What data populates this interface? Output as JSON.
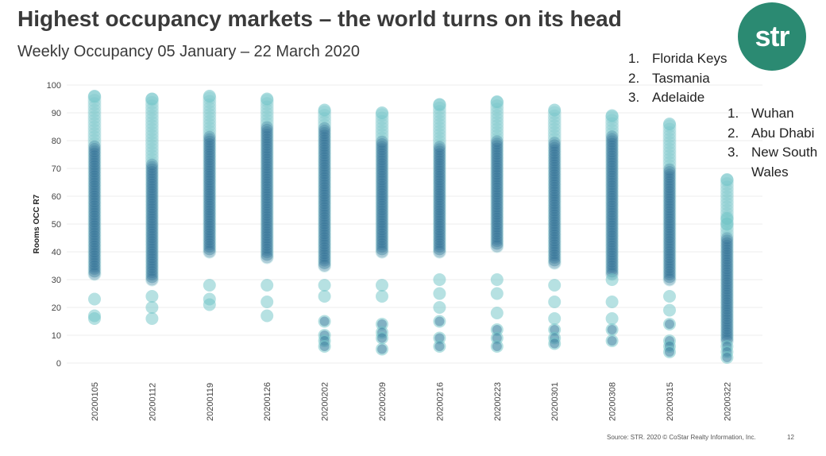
{
  "header": {
    "title": "Highest occupancy markets – the world turns on its head",
    "subtitle": "Weekly Occupancy 05 January – 22 March 2020"
  },
  "logo": {
    "text": "str",
    "color": "#2b8a72"
  },
  "top_list_highest": [
    {
      "num": "1.",
      "label": "Florida Keys"
    },
    {
      "num": "2.",
      "label": "Tasmania"
    },
    {
      "num": "3.",
      "label": "Adelaide"
    }
  ],
  "top_list_latest": [
    {
      "num": "1.",
      "label": "Wuhan"
    },
    {
      "num": "2.",
      "label": "Abu Dhabi"
    },
    {
      "num": "3.",
      "label": "New South Wales"
    }
  ],
  "footer": {
    "source": "Source: STR. 2020 © CoStar Realty Information, Inc.",
    "page_number": "12"
  },
  "colors": {
    "dark_point": "#1f5a8a",
    "light_point": "#6ec3c6"
  },
  "chart_data": {
    "type": "scatter",
    "title": "",
    "xlabel": "",
    "ylabel": "Rooms OCC R7",
    "ylim": [
      0,
      100
    ],
    "yticks": [
      0,
      10,
      20,
      30,
      40,
      50,
      60,
      70,
      80,
      90,
      100
    ],
    "grid": true,
    "categories": [
      "20200105",
      "20200112",
      "20200119",
      "20200126",
      "20200202",
      "20200209",
      "20200216",
      "20200223",
      "20200301",
      "20200308",
      "20200315",
      "20200322"
    ],
    "distributions": [
      {
        "week": "20200105",
        "max": 96,
        "dense_low": 32,
        "dense_high": 78,
        "outliers": [
          23,
          17,
          16
        ]
      },
      {
        "week": "20200112",
        "max": 95,
        "dense_low": 30,
        "dense_high": 72,
        "outliers": [
          24,
          20,
          16
        ]
      },
      {
        "week": "20200119",
        "max": 96,
        "dense_low": 40,
        "dense_high": 82,
        "outliers": [
          28,
          23,
          21
        ]
      },
      {
        "week": "20200126",
        "max": 95,
        "dense_low": 38,
        "dense_high": 85,
        "outliers": [
          28,
          22,
          17
        ]
      },
      {
        "week": "20200202",
        "max": 91,
        "dense_low": 35,
        "dense_high": 85,
        "outliers": [
          28,
          24,
          15,
          10,
          8,
          6
        ]
      },
      {
        "week": "20200209",
        "max": 90,
        "dense_low": 40,
        "dense_high": 80,
        "outliers": [
          28,
          24,
          14,
          11,
          9,
          5
        ]
      },
      {
        "week": "20200216",
        "max": 93,
        "dense_low": 40,
        "dense_high": 78,
        "outliers": [
          30,
          25,
          20,
          15,
          9,
          6
        ]
      },
      {
        "week": "20200223",
        "max": 94,
        "dense_low": 42,
        "dense_high": 80,
        "outliers": [
          30,
          25,
          18,
          12,
          9,
          6
        ]
      },
      {
        "week": "20200301",
        "max": 91,
        "dense_low": 36,
        "dense_high": 80,
        "outliers": [
          28,
          22,
          16,
          12,
          9,
          7
        ]
      },
      {
        "week": "20200308",
        "max": 89,
        "dense_low": 32,
        "dense_high": 82,
        "outliers": [
          30,
          22,
          16,
          12,
          8
        ]
      },
      {
        "week": "20200315",
        "max": 86,
        "dense_low": 30,
        "dense_high": 70,
        "outliers": [
          24,
          19,
          14,
          8,
          6,
          4
        ]
      },
      {
        "week": "20200322",
        "max": 66,
        "dense_low": 8,
        "dense_high": 45,
        "outliers": [
          52,
          50,
          6,
          4,
          2
        ]
      }
    ]
  }
}
